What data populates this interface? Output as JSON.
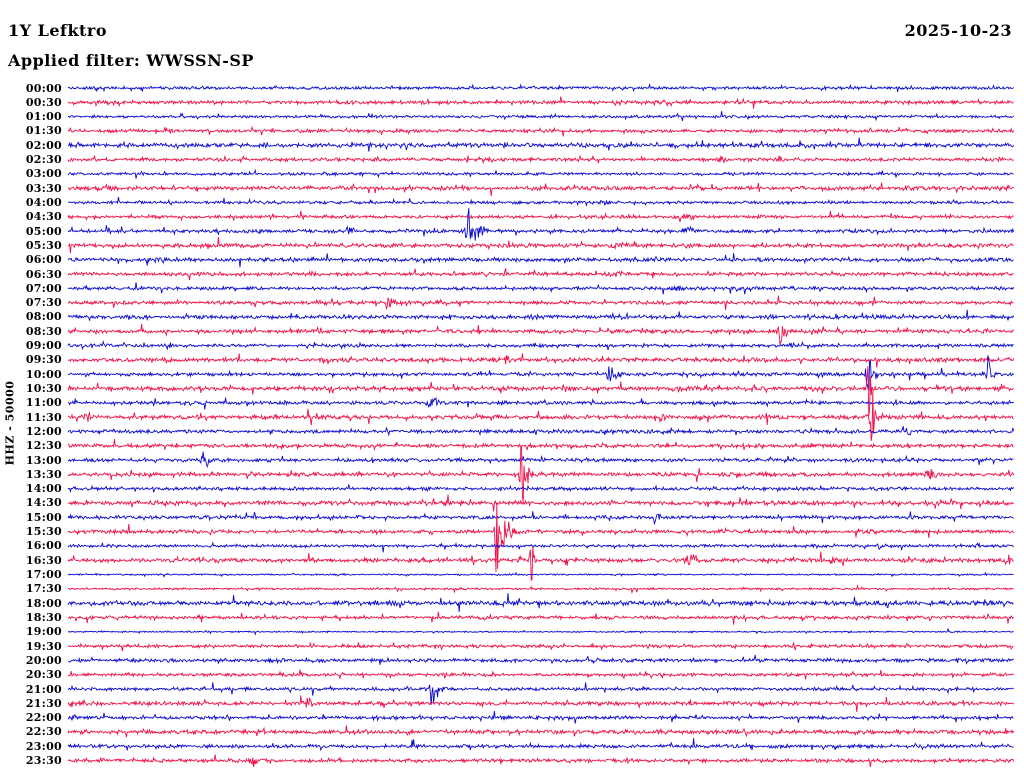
{
  "header": {
    "station": "1Y Lefktro",
    "date": "2025-10-23",
    "filter_label": "Applied filter: WWSSN-SP"
  },
  "chart_data": {
    "type": "line",
    "subtype": "helicorder-dayplot",
    "title": "1Y Lefktro",
    "date": "2025-10-23",
    "filter": "WWSSN-SP",
    "ylabel": "HHZ - 50000",
    "xlabel": "",
    "row_interval_minutes": 30,
    "grid": false,
    "legend": "none",
    "colors": {
      "even_rows": "#0b0bd0",
      "odd_rows": "#ef1048",
      "text": "#000000",
      "background": "#ffffff"
    },
    "rows": [
      {
        "t": "00:00",
        "noise": 1.7,
        "events": []
      },
      {
        "t": "00:30",
        "noise": 2.0,
        "events": []
      },
      {
        "t": "01:00",
        "noise": 1.5,
        "events": []
      },
      {
        "t": "01:30",
        "noise": 1.9,
        "events": []
      },
      {
        "t": "02:00",
        "noise": 2.4,
        "events": []
      },
      {
        "t": "02:30",
        "noise": 1.9,
        "events": [
          {
            "m": 20.7,
            "a": 3,
            "w": 4
          }
        ]
      },
      {
        "t": "03:00",
        "noise": 1.6,
        "events": []
      },
      {
        "t": "03:30",
        "noise": 2.4,
        "events": []
      },
      {
        "t": "04:00",
        "noise": 1.7,
        "events": []
      },
      {
        "t": "04:30",
        "noise": 1.8,
        "events": [
          {
            "m": 19.6,
            "a": 4,
            "w": 4
          }
        ]
      },
      {
        "t": "05:00",
        "noise": 2.0,
        "events": [
          {
            "m": 8.9,
            "a": 5,
            "w": 3
          },
          {
            "m": 12.7,
            "a": 12,
            "w": 5,
            "tail": 3,
            "spike": 14
          },
          {
            "m": 19.6,
            "a": 5,
            "w": 4
          }
        ]
      },
      {
        "t": "05:30",
        "noise": 2.3,
        "events": [
          {
            "m": 17.5,
            "a": 3,
            "w": 8
          }
        ]
      },
      {
        "t": "06:00",
        "noise": 2.2,
        "events": []
      },
      {
        "t": "06:30",
        "noise": 2.1,
        "events": [
          {
            "m": 7.7,
            "a": 3,
            "w": 3
          },
          {
            "m": 17.4,
            "a": 3,
            "w": 3
          }
        ]
      },
      {
        "t": "07:00",
        "noise": 1.9,
        "events": [
          {
            "m": 19.3,
            "a": 4,
            "w": 3
          }
        ]
      },
      {
        "t": "07:30",
        "noise": 2.0,
        "events": [
          {
            "m": 10.2,
            "a": 6,
            "w": 4
          }
        ]
      },
      {
        "t": "08:00",
        "noise": 2.1,
        "events": [
          {
            "m": 14.7,
            "a": 3,
            "w": 3
          },
          {
            "m": 22.3,
            "a": 3,
            "w": 3
          }
        ]
      },
      {
        "t": "08:30",
        "noise": 2.1,
        "events": [
          {
            "m": 22.6,
            "a": 7,
            "w": 4,
            "spike": 12
          }
        ]
      },
      {
        "t": "09:00",
        "noise": 1.9,
        "events": [
          {
            "m": 22.9,
            "a": 3,
            "w": 2
          }
        ]
      },
      {
        "t": "09:30",
        "noise": 2.4,
        "events": [
          {
            "m": 13.9,
            "a": 5,
            "w": 3
          }
        ]
      },
      {
        "t": "10:00",
        "noise": 2.0,
        "events": [
          {
            "m": 17.2,
            "a": 8,
            "w": 4
          },
          {
            "m": 25.4,
            "a": 9,
            "w": 4,
            "spike": 20
          },
          {
            "m": 29.2,
            "a": 9,
            "w": 3,
            "spike": 18
          }
        ]
      },
      {
        "t": "10:30",
        "noise": 2.4,
        "events": [
          {
            "m": 25.4,
            "a": 3,
            "w": 1.5,
            "spike": 28
          }
        ]
      },
      {
        "t": "11:00",
        "noise": 1.9,
        "events": [
          {
            "m": 3.6,
            "a": 3,
            "w": 2
          },
          {
            "m": 11.5,
            "a": 7,
            "w": 4
          },
          {
            "m": 20.5,
            "a": 3,
            "w": 2
          }
        ]
      },
      {
        "t": "11:30",
        "noise": 2.4,
        "events": [
          {
            "m": 0.6,
            "a": 5,
            "w": 3
          },
          {
            "m": 18.8,
            "a": 4,
            "w": 2.5
          },
          {
            "m": 25.5,
            "a": 8,
            "w": 3,
            "spike": 24
          }
        ]
      },
      {
        "t": "12:00",
        "noise": 2.0,
        "events": [
          {
            "m": 26.5,
            "a": 6,
            "w": 3
          }
        ]
      },
      {
        "t": "12:30",
        "noise": 2.2,
        "events": []
      },
      {
        "t": "13:00",
        "noise": 2.0,
        "events": [
          {
            "m": 4.3,
            "a": 7,
            "w": 3.5
          }
        ]
      },
      {
        "t": "13:30",
        "noise": 2.2,
        "events": [
          {
            "m": 14.4,
            "a": 13,
            "w": 3,
            "tail": 3,
            "spike": 32
          },
          {
            "m": 27.3,
            "a": 6,
            "w": 4
          }
        ]
      },
      {
        "t": "14:00",
        "noise": 1.8,
        "events": []
      },
      {
        "t": "14:30",
        "noise": 2.4,
        "events": []
      },
      {
        "t": "15:00",
        "noise": 1.9,
        "events": [
          {
            "m": 18.6,
            "a": 5,
            "w": 3.5
          }
        ]
      },
      {
        "t": "15:30",
        "noise": 2.0,
        "events": [
          {
            "m": 13.6,
            "a": 18,
            "w": 2.5,
            "tail": 6,
            "spike": 34
          }
        ]
      },
      {
        "t": "16:00",
        "noise": 1.7,
        "events": []
      },
      {
        "t": "16:30",
        "noise": 2.3,
        "events": [
          {
            "m": 14.7,
            "a": 7,
            "w": 2,
            "spike": 16
          },
          {
            "m": 19.7,
            "a": 9,
            "w": 4
          },
          {
            "m": 24.2,
            "a": 4,
            "w": 2.5
          }
        ]
      },
      {
        "t": "17:00",
        "noise": 0.9,
        "events": []
      },
      {
        "t": "17:30",
        "noise": 1.1,
        "events": []
      },
      {
        "t": "18:00",
        "noise": 2.6,
        "events": []
      },
      {
        "t": "18:30",
        "noise": 1.9,
        "events": []
      },
      {
        "t": "19:00",
        "noise": 0.8,
        "events": []
      },
      {
        "t": "19:30",
        "noise": 1.8,
        "events": []
      },
      {
        "t": "20:00",
        "noise": 2.1,
        "events": []
      },
      {
        "t": "20:30",
        "noise": 1.8,
        "events": []
      },
      {
        "t": "21:00",
        "noise": 1.8,
        "events": [
          {
            "m": 11.5,
            "a": 13,
            "w": 4,
            "tail": 2.5,
            "spike": 16
          }
        ]
      },
      {
        "t": "21:30",
        "noise": 2.2,
        "events": [
          {
            "m": 7.6,
            "a": 5,
            "w": 4
          }
        ]
      },
      {
        "t": "22:00",
        "noise": 1.8,
        "events": []
      },
      {
        "t": "22:30",
        "noise": 2.4,
        "events": []
      },
      {
        "t": "23:00",
        "noise": 2.0,
        "events": []
      },
      {
        "t": "23:30",
        "noise": 2.0,
        "events": [
          {
            "m": 5.8,
            "a": 6,
            "w": 3
          }
        ]
      }
    ]
  }
}
